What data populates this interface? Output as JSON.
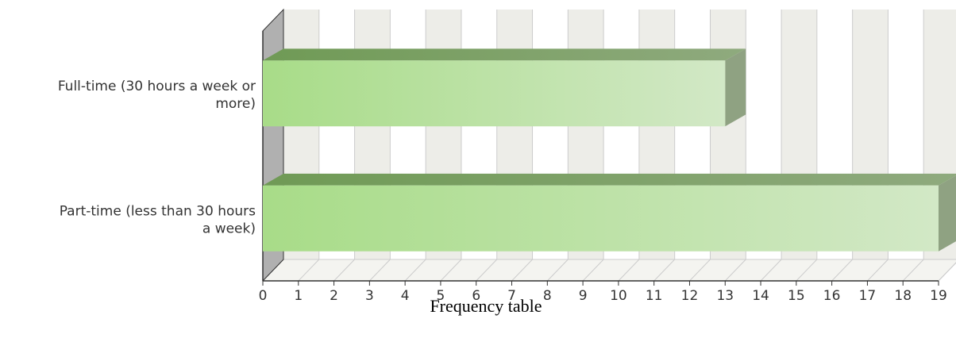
{
  "chart_data": {
    "type": "bar",
    "orientation": "horizontal",
    "style": "3d",
    "categories": [
      {
        "line1": "Full-time (30 hours a week or",
        "line2": "more)"
      },
      {
        "line1": "Part-time (less than 30 hours",
        "line2": "a week)"
      }
    ],
    "values": [
      13,
      19
    ],
    "title": "",
    "xlabel": "Frequency table",
    "ylabel": "",
    "xlim": [
      0,
      19
    ],
    "xticks": [
      "0",
      "1",
      "2",
      "3",
      "4",
      "5",
      "6",
      "7",
      "8",
      "9",
      "10",
      "11",
      "12",
      "13",
      "14",
      "15",
      "16",
      "17",
      "18",
      "19"
    ],
    "grid": true,
    "legend": "none",
    "colors": {
      "bar_left": "#a8dc88",
      "bar_right": "#d2e8c6",
      "bar_top": "#7a9e62",
      "bar_side": "#8fa282",
      "wall_band": "#edede8",
      "wall_side": "#b0b0b0",
      "grid": "#cccccc",
      "axis": "#333333"
    }
  }
}
